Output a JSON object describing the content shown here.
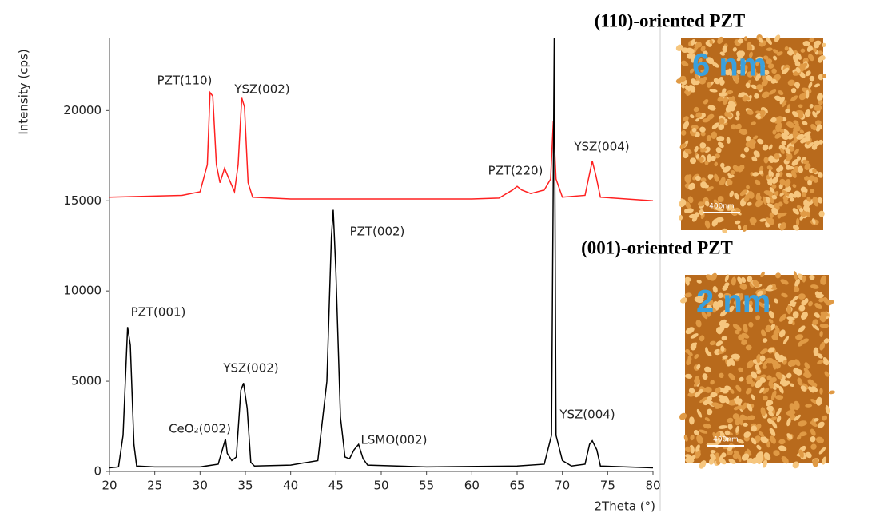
{
  "chart_data": {
    "type": "line",
    "xlabel": "2Theta (°)",
    "ylabel": "Intensity (cps)",
    "xlim": [
      20,
      80
    ],
    "xticks": [
      20,
      25,
      30,
      35,
      40,
      45,
      50,
      55,
      60,
      65,
      70,
      75,
      80
    ],
    "ylim": [
      0,
      24000
    ],
    "yticks": [
      0,
      5000,
      10000,
      15000,
      20000
    ],
    "series": [
      {
        "color": "#ff2020",
        "x": [
          20,
          28,
          30,
          30.8,
          31.1,
          31.4,
          31.8,
          32.2,
          32.7,
          33.2,
          33.8,
          34.2,
          34.6,
          34.9,
          35.3,
          35.8,
          40,
          50,
          60,
          63,
          64.5,
          65,
          65.5,
          66.5,
          68,
          68.7,
          69,
          69.3,
          70,
          72.5,
          73,
          73.3,
          73.7,
          74.2,
          80
        ],
        "values": [
          15200,
          15300,
          15500,
          17000,
          21000,
          20800,
          17000,
          16000,
          16800,
          16200,
          15500,
          17000,
          20700,
          20200,
          16000,
          15200,
          15100,
          15100,
          15100,
          15150,
          15600,
          15800,
          15600,
          15400,
          15600,
          16200,
          19400,
          16200,
          15200,
          15300,
          16500,
          17200,
          16400,
          15200,
          15000
        ]
      },
      {
        "color": "#000000",
        "x": [
          20,
          21,
          21.5,
          22,
          22.3,
          22.7,
          23,
          25,
          30,
          32,
          32.8,
          33,
          33.5,
          34,
          34.5,
          34.8,
          35.2,
          35.6,
          36,
          40,
          43,
          44,
          44.5,
          44.7,
          45,
          45.5,
          46,
          46.5,
          47,
          47.5,
          48,
          48.5,
          55,
          65,
          68,
          68.8,
          69.1,
          69.3,
          70,
          71,
          72.5,
          73,
          73.3,
          73.8,
          74.2,
          80
        ],
        "values": [
          200,
          250,
          2000,
          8000,
          7000,
          1500,
          300,
          250,
          250,
          400,
          1800,
          1000,
          600,
          800,
          4500,
          4900,
          3500,
          500,
          300,
          350,
          600,
          5000,
          13000,
          14500,
          11000,
          3000,
          800,
          700,
          1200,
          1500,
          700,
          350,
          250,
          300,
          400,
          2000,
          24000,
          2000,
          600,
          300,
          400,
          1500,
          1700,
          1200,
          300,
          200
        ]
      }
    ],
    "annotations": [
      "PZT(110)",
      "YSZ(002)",
      "PZT(220)",
      "YSZ(004)",
      "PZT(002)",
      "PZT(001)",
      "YSZ(002)",
      "CeO₂(002)",
      "LSMO(002)",
      "YSZ(004)"
    ]
  },
  "panels": [
    {
      "title": "(110)-oriented PZT",
      "roughness": "6 nm",
      "scale": "400nm"
    },
    {
      "title": "(001)-oriented PZT",
      "roughness": "2 nm",
      "scale": "400nm"
    }
  ]
}
